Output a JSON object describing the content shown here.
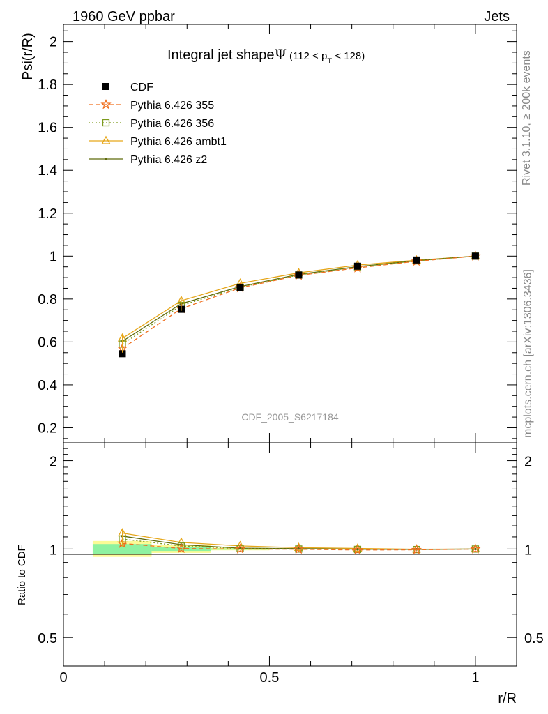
{
  "header": {
    "left": "1960 GeV ppbar",
    "right": "Jets"
  },
  "side_labels": {
    "rivet": "Rivet 3.1.10, ≥ 200k events",
    "mcplots": "mcplots.cern.ch [arXiv:1306.3436]"
  },
  "watermark": "CDF_2005_S6217184",
  "colors": {
    "cdf": "#000000",
    "p355": "#f06f1e",
    "p356": "#7d9b1e",
    "ambt1": "#e6a619",
    "z2": "#5e6a0a",
    "band_green": "#8ef2a0",
    "band_yellow": "#fbfb96"
  },
  "chart_data": [
    {
      "type": "line",
      "title": "Integral jet shape",
      "title_symbol": "Ψ",
      "title_range": {
        "open": "(112 < p",
        "sub": "T",
        "close": " < 128)"
      },
      "xlabel": "r/R",
      "ylabel": "Psi(r/R)",
      "xlim": [
        0,
        1.1
      ],
      "ylim": [
        0.13,
        2.08
      ],
      "yticks": [
        0.2,
        0.4,
        0.6,
        0.8,
        1,
        1.2,
        1.4,
        1.6,
        1.8,
        2
      ],
      "ytick_labels": [
        "0.2",
        "0.4",
        "0.6",
        "0.8",
        "1",
        "1.2",
        "1.4",
        "1.6",
        "1.8",
        "2"
      ],
      "x": [
        0.143,
        0.286,
        0.429,
        0.571,
        0.714,
        0.857,
        1.0
      ],
      "series": [
        {
          "name": "CDF",
          "key": "cdf",
          "marker": "square-filled",
          "values": [
            0.545,
            0.752,
            0.852,
            0.912,
            0.953,
            0.982,
            1.0
          ]
        },
        {
          "name": "Pythia 6.426 355",
          "key": "p355",
          "marker": "star",
          "dash": "6,4",
          "values": [
            0.57,
            0.755,
            0.852,
            0.91,
            0.945,
            0.976,
            1.0
          ]
        },
        {
          "name": "Pythia 6.426 356",
          "key": "p356",
          "marker": "square-open",
          "dash": "2,3",
          "values": [
            0.59,
            0.77,
            0.855,
            0.912,
            0.95,
            0.978,
            1.0
          ]
        },
        {
          "name": "Pythia 6.426 ambt1",
          "key": "ambt1",
          "marker": "triangle-open",
          "values": [
            0.617,
            0.792,
            0.873,
            0.922,
            0.958,
            0.981,
            1.0
          ]
        },
        {
          "name": "Pythia 6.426 z2",
          "key": "z2",
          "marker": "dot",
          "values": [
            0.603,
            0.778,
            0.858,
            0.915,
            0.951,
            0.979,
            1.0
          ]
        }
      ]
    },
    {
      "type": "line",
      "ylabel": "Ratio to CDF",
      "xlabel": "r/R",
      "xlim": [
        0,
        1.1
      ],
      "ylim": [
        0.4,
        2.3
      ],
      "yscale": "log",
      "yticks": [
        0.5,
        1,
        2
      ],
      "ytick_labels": [
        "0.5",
        "1",
        "2"
      ],
      "xticks": [
        0,
        0.5,
        1
      ],
      "xtick_labels": [
        "0",
        "0.5",
        "1"
      ],
      "x": [
        0.143,
        0.286,
        0.429,
        0.571,
        0.714,
        0.857,
        1.0
      ],
      "uncertainty_bands": [
        {
          "xmin": 0.071,
          "xmax": 0.214,
          "green": [
            0.96,
            1.04
          ],
          "yellow": [
            0.94,
            1.065
          ]
        },
        {
          "xmin": 0.214,
          "xmax": 0.357,
          "green": [
            0.985,
            1.015
          ],
          "yellow": [
            0.97,
            1.03
          ]
        },
        {
          "xmin": 0.357,
          "xmax": 0.5,
          "green": [
            0.995,
            1.005
          ],
          "yellow": [
            0.99,
            1.01
          ]
        }
      ],
      "series": [
        {
          "name": "Pythia 6.426 355",
          "key": "p355",
          "marker": "star",
          "dash": "6,4",
          "values": [
            1.045,
            1.004,
            1.0,
            0.998,
            0.992,
            0.994,
            1.0
          ]
        },
        {
          "name": "Pythia 6.426 356",
          "key": "p356",
          "marker": "square-open",
          "dash": "2,3",
          "values": [
            1.082,
            1.024,
            1.004,
            1.0,
            0.997,
            0.996,
            1.0
          ]
        },
        {
          "name": "Pythia 6.426 ambt1",
          "key": "ambt1",
          "marker": "triangle-open",
          "values": [
            1.133,
            1.053,
            1.025,
            1.011,
            1.005,
            0.999,
            1.0
          ]
        },
        {
          "name": "Pythia 6.426 z2",
          "key": "z2",
          "marker": "dot",
          "values": [
            1.107,
            1.035,
            1.007,
            1.003,
            0.998,
            0.997,
            1.0
          ]
        }
      ]
    }
  ]
}
